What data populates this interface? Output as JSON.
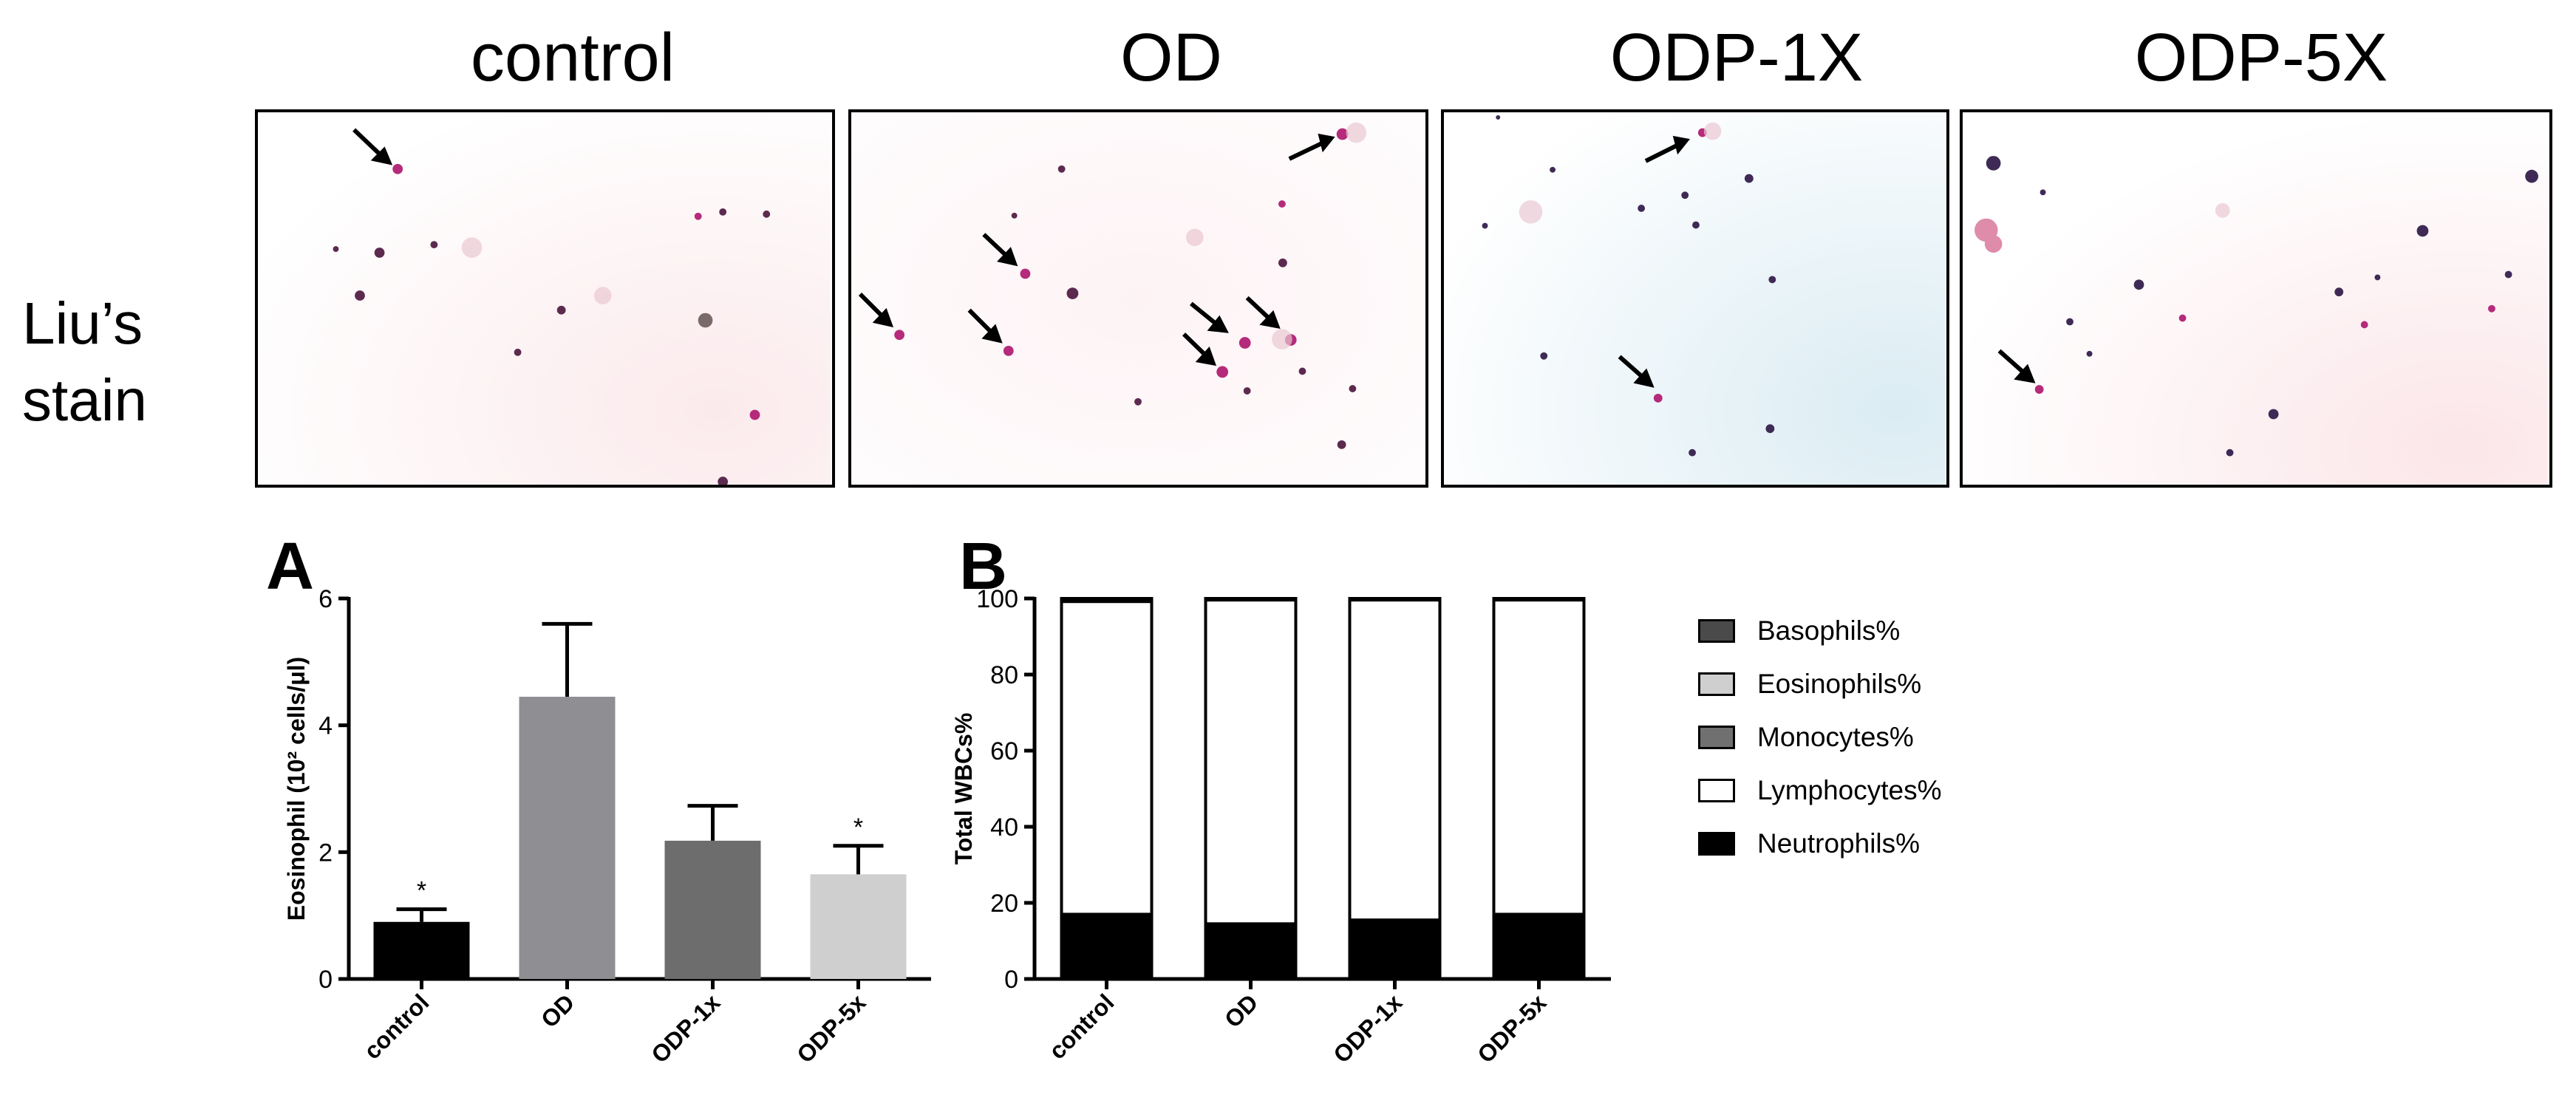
{
  "figure": {
    "panel_titles": [
      "control",
      "OD",
      "ODP-1X",
      "ODP-5X"
    ],
    "stain_label_line1": "Liu’s",
    "stain_label_line2": "stain",
    "panel_letters": {
      "a": "A",
      "b": "B"
    }
  },
  "chart_data": [
    {
      "type": "bar",
      "panel": "A",
      "categories": [
        "control",
        "OD",
        "ODP-1x",
        "ODP-5x"
      ],
      "values": [
        0.9,
        4.45,
        2.18,
        1.65
      ],
      "errors": [
        0.2,
        1.15,
        0.55,
        0.45
      ],
      "colors": [
        "#000000",
        "#8f8f93",
        "#6d6d6d",
        "#cfcfcf"
      ],
      "significance": [
        "*",
        "",
        "",
        "*"
      ],
      "ylabel": "Eosinophil (10² cells/μl)",
      "ylim": [
        0,
        6
      ],
      "yticks": [
        0,
        2,
        4,
        6
      ]
    },
    {
      "type": "bar",
      "panel": "B",
      "stacked": true,
      "categories": [
        "control",
        "OD",
        "ODP-1x",
        "ODP-5x"
      ],
      "series": [
        {
          "name": "Neutrophils%",
          "color": "#000000",
          "values": [
            17,
            14.5,
            15.5,
            17
          ]
        },
        {
          "name": "Lymphocytes%",
          "color": "#ffffff",
          "values": [
            82.2,
            85.1,
            84.1,
            82.6
          ]
        },
        {
          "name": "Monocytes%",
          "color": "#707070",
          "values": [
            0.3,
            0.2,
            0.2,
            0.2
          ]
        },
        {
          "name": "Eosinophils%",
          "color": "#cfcfcf",
          "values": [
            0.3,
            0.1,
            0.1,
            0.1
          ]
        },
        {
          "name": "Basophils%",
          "color": "#4a4a4a",
          "values": [
            0.2,
            0.1,
            0.1,
            0.1
          ]
        }
      ],
      "legend_order": [
        "Basophils%",
        "Eosinophils%",
        "Monocytes%",
        "Lymphocytes%",
        "Neutrophils%"
      ],
      "ylabel": "Total WBCs%",
      "ylim": [
        0,
        100
      ],
      "yticks": [
        0,
        20,
        40,
        60,
        80,
        100
      ],
      "legend_position": "right"
    }
  ]
}
